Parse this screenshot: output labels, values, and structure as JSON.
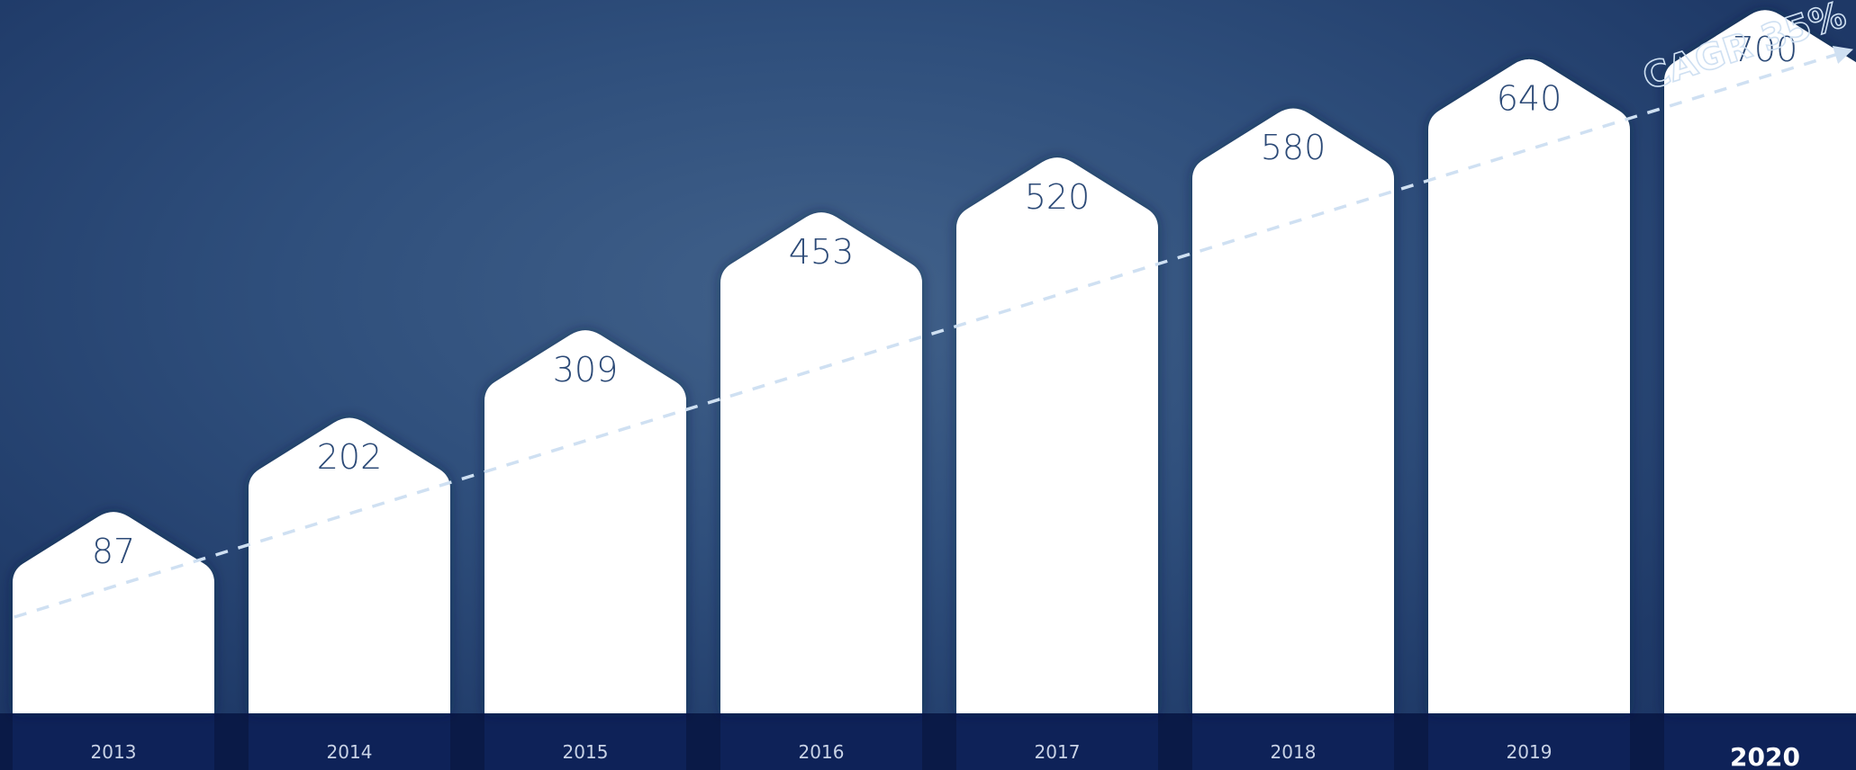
{
  "chart_data": {
    "type": "bar",
    "categories": [
      "2013",
      "2014",
      "2015",
      "2016",
      "2017",
      "2018",
      "2019",
      "2020"
    ],
    "values": [
      87,
      202,
      309,
      453,
      520,
      580,
      640,
      700
    ],
    "highlight_category": "2020",
    "annotation": "CAGR 35%",
    "grid": false,
    "legend": "none",
    "colors": {
      "background": "#2f4f7c",
      "bar": "#ffffff",
      "value_text": "#2c4a77",
      "base_band": "#0e2258",
      "trend_line": "#cfe0f2"
    }
  }
}
